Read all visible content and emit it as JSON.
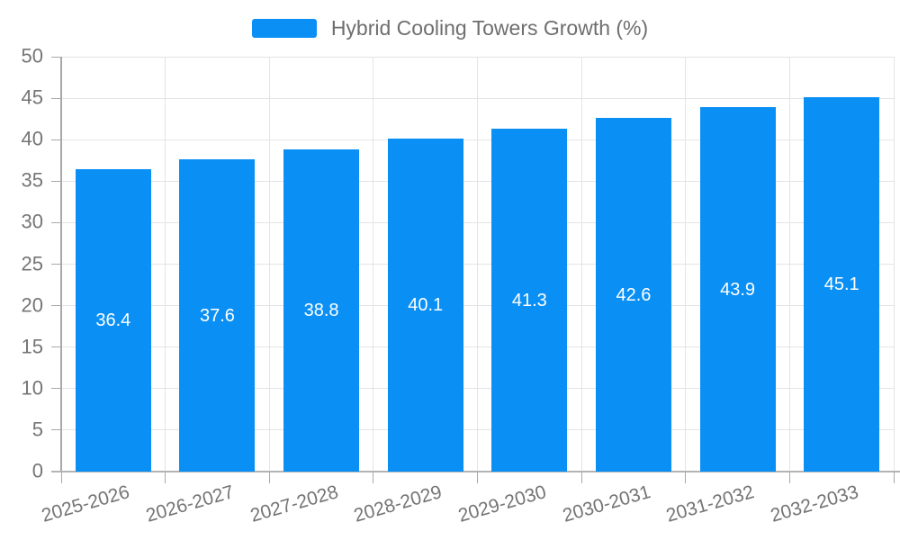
{
  "chart_data": {
    "type": "bar",
    "legend_label": "Hybrid Cooling Towers Growth (%)",
    "categories": [
      "2025-2026",
      "2026-2027",
      "2027-2028",
      "2028-2029",
      "2029-2030",
      "2030-2031",
      "2031-2032",
      "2032-2033"
    ],
    "values": [
      36.4,
      37.6,
      38.8,
      40.1,
      41.3,
      42.6,
      43.9,
      45.1
    ],
    "value_labels": [
      "36.4",
      "37.6",
      "38.8",
      "40.1",
      "41.3",
      "42.6",
      "43.9",
      "45.1"
    ],
    "ylim": [
      0,
      50
    ],
    "ytick_step": 5,
    "grid": true,
    "legend_position": "top-center",
    "value_label_position": "center-of-bar",
    "colors": {
      "bar": "#0a8ff5",
      "value_label": "#ffffff",
      "axis_text": "#757575",
      "legend_text": "#6e6e6e",
      "gridline": "#e4e4e8",
      "axis_line": "#a8a8a8"
    }
  }
}
